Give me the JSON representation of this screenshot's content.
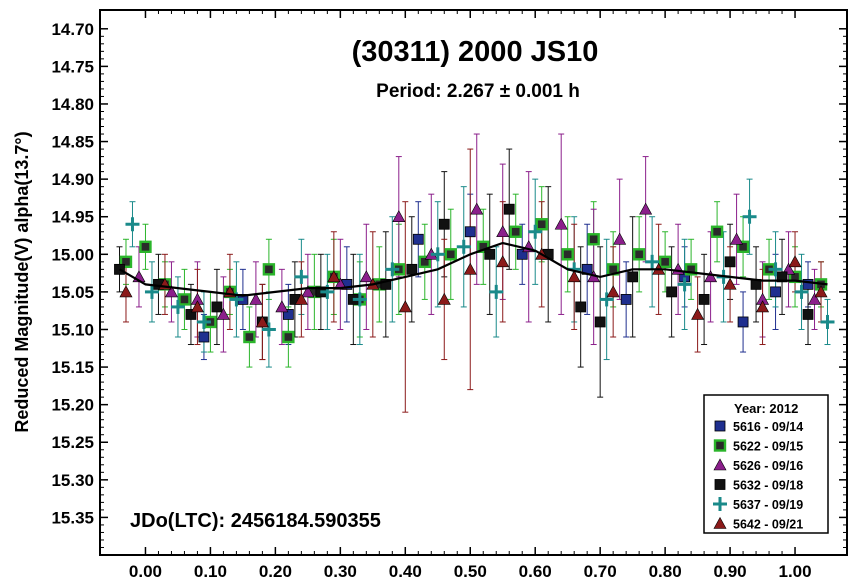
{
  "chart_data": {
    "type": "scatter",
    "title": "(30311) 2000 JS10",
    "subtitle": "Period: 2.267 ± 0.001 h",
    "xlabel": "",
    "ylabel": "Reduced Magnitude(V) alpha(13.7°)",
    "annotation": "JDo(LTC): 2456184.590355",
    "xlim": [
      -0.07,
      1.08
    ],
    "ylim": [
      14.675,
      15.4
    ],
    "y_inverted": true,
    "x_ticks": [
      "0.00",
      "0.10",
      "0.20",
      "0.30",
      "0.40",
      "0.50",
      "0.60",
      "0.70",
      "0.80",
      "0.90",
      "1.00"
    ],
    "y_ticks": [
      "14.70",
      "14.75",
      "14.80",
      "14.85",
      "14.90",
      "14.95",
      "15.00",
      "15.05",
      "15.10",
      "15.15",
      "15.20",
      "15.25",
      "15.30",
      "15.35"
    ],
    "grid": false,
    "legend": {
      "title": "Year: 2012",
      "placement": "bottom-right",
      "entries": [
        {
          "label": "5616 - 09/14",
          "marker": "square",
          "color": "#1f2f8f"
        },
        {
          "label": "5622 - 09/15",
          "marker": "square-outlined",
          "color": "#2a2a2a",
          "edge": "#2bb52b"
        },
        {
          "label": "5626 - 09/16",
          "marker": "triangle",
          "color": "#8b1f8b"
        },
        {
          "label": "5632 - 09/18",
          "marker": "square",
          "color": "#111111"
        },
        {
          "label": "5637 - 09/19",
          "marker": "plus",
          "color": "#1a8a8a"
        },
        {
          "label": "5642 - 09/21",
          "marker": "triangle",
          "color": "#8b1a1a"
        }
      ]
    },
    "fit_curve": {
      "x": [
        -0.04,
        0.0,
        0.05,
        0.1,
        0.15,
        0.2,
        0.25,
        0.3,
        0.35,
        0.4,
        0.45,
        0.5,
        0.55,
        0.6,
        0.65,
        0.7,
        0.75,
        0.8,
        0.85,
        0.9,
        0.95,
        1.0,
        1.05
      ],
      "y": [
        15.02,
        15.04,
        15.045,
        15.05,
        15.055,
        15.05,
        15.045,
        15.045,
        15.04,
        15.03,
        15.02,
        15.0,
        14.985,
        14.995,
        15.02,
        15.03,
        15.02,
        15.02,
        15.025,
        15.03,
        15.035,
        15.035,
        15.04
      ]
    },
    "series": [
      {
        "name": "5616 - 09/14",
        "x": [
          0.09,
          0.15,
          0.22,
          0.31,
          0.42,
          0.5,
          0.58,
          0.68,
          0.74,
          0.83,
          0.92,
          0.97,
          1.02
        ],
        "y": [
          15.11,
          15.06,
          15.08,
          15.04,
          14.98,
          14.97,
          15.0,
          15.02,
          15.06,
          15.03,
          15.09,
          15.05,
          15.04
        ],
        "err": [
          0.03,
          0.04,
          0.04,
          0.05,
          0.05,
          0.05,
          0.04,
          0.06,
          0.05,
          0.04,
          0.04,
          0.05,
          0.03
        ]
      },
      {
        "name": "5622 - 09/15",
        "x": [
          -0.03,
          0.0,
          0.03,
          0.06,
          0.1,
          0.13,
          0.16,
          0.19,
          0.22,
          0.26,
          0.29,
          0.33,
          0.36,
          0.39,
          0.43,
          0.47,
          0.52,
          0.57,
          0.61,
          0.65,
          0.69,
          0.72,
          0.76,
          0.8,
          0.84,
          0.88,
          0.92,
          0.96,
          1.0,
          1.04
        ],
        "y": [
          15.01,
          14.99,
          15.04,
          15.06,
          15.09,
          15.05,
          15.11,
          15.02,
          15.11,
          15.05,
          15.03,
          15.06,
          15.04,
          15.02,
          15.01,
          15.0,
          14.99,
          14.97,
          14.96,
          15.0,
          14.98,
          15.02,
          15.0,
          15.01,
          15.02,
          14.97,
          14.99,
          15.02,
          15.03,
          15.04
        ],
        "err": [
          0.03,
          0.03,
          0.03,
          0.04,
          0.04,
          0.03,
          0.04,
          0.04,
          0.04,
          0.05,
          0.05,
          0.05,
          0.05,
          0.06,
          0.05,
          0.06,
          0.05,
          0.05,
          0.05,
          0.05,
          0.05,
          0.05,
          0.05,
          0.04,
          0.04,
          0.04,
          0.04,
          0.04,
          0.04,
          0.03
        ]
      },
      {
        "name": "5626 - 09/16",
        "x": [
          -0.01,
          0.04,
          0.08,
          0.12,
          0.17,
          0.21,
          0.25,
          0.3,
          0.34,
          0.39,
          0.44,
          0.51,
          0.55,
          0.59,
          0.64,
          0.69,
          0.73,
          0.77,
          0.82,
          0.87,
          0.91,
          0.95,
          0.99,
          1.03
        ],
        "y": [
          15.03,
          15.05,
          15.06,
          15.08,
          15.06,
          15.07,
          15.05,
          15.04,
          15.03,
          14.95,
          15.0,
          14.94,
          14.97,
          14.99,
          14.96,
          15.03,
          14.98,
          14.94,
          15.02,
          15.03,
          14.98,
          15.06,
          15.02,
          15.06
        ],
        "err": [
          0.04,
          0.04,
          0.05,
          0.05,
          0.05,
          0.05,
          0.05,
          0.06,
          0.07,
          0.08,
          0.08,
          0.1,
          0.09,
          0.1,
          0.12,
          0.09,
          0.08,
          0.07,
          0.06,
          0.06,
          0.06,
          0.05,
          0.05,
          0.04
        ]
      },
      {
        "name": "5632 - 09/18",
        "x": [
          -0.04,
          0.02,
          0.07,
          0.11,
          0.18,
          0.23,
          0.27,
          0.32,
          0.37,
          0.41,
          0.46,
          0.53,
          0.56,
          0.62,
          0.67,
          0.7,
          0.75,
          0.81,
          0.86,
          0.9,
          0.94,
          0.98,
          1.02
        ],
        "y": [
          15.02,
          15.04,
          15.08,
          15.07,
          15.09,
          15.06,
          15.05,
          15.06,
          15.04,
          15.02,
          14.96,
          15.0,
          14.94,
          15.0,
          15.07,
          15.09,
          15.03,
          15.05,
          15.06,
          15.01,
          15.04,
          15.03,
          15.08
        ],
        "err": [
          0.03,
          0.04,
          0.04,
          0.05,
          0.05,
          0.05,
          0.05,
          0.06,
          0.07,
          0.07,
          0.07,
          0.08,
          0.08,
          0.09,
          0.08,
          0.1,
          0.08,
          0.06,
          0.06,
          0.05,
          0.05,
          0.05,
          0.04
        ]
      },
      {
        "name": "5637 - 09/19",
        "x": [
          -0.02,
          0.01,
          0.05,
          0.09,
          0.14,
          0.19,
          0.24,
          0.28,
          0.33,
          0.38,
          0.45,
          0.49,
          0.54,
          0.6,
          0.66,
          0.71,
          0.78,
          0.83,
          0.89,
          0.93,
          0.97,
          1.01,
          1.05
        ],
        "y": [
          14.96,
          15.05,
          15.07,
          15.09,
          15.06,
          15.1,
          15.03,
          15.05,
          15.06,
          15.02,
          15.0,
          14.99,
          15.05,
          14.97,
          15.02,
          15.06,
          15.01,
          15.04,
          15.03,
          14.95,
          15.02,
          15.05,
          15.09
        ],
        "err": [
          0.03,
          0.04,
          0.04,
          0.04,
          0.05,
          0.05,
          0.05,
          0.05,
          0.06,
          0.07,
          0.07,
          0.08,
          0.06,
          0.07,
          0.07,
          0.08,
          0.06,
          0.06,
          0.06,
          0.05,
          0.05,
          0.05,
          0.03
        ]
      },
      {
        "name": "5642 - 09/21",
        "x": [
          -0.03,
          0.03,
          0.08,
          0.13,
          0.18,
          0.24,
          0.29,
          0.35,
          0.4,
          0.46,
          0.5,
          0.55,
          0.61,
          0.66,
          0.72,
          0.79,
          0.85,
          0.9,
          0.95,
          1.0,
          1.04
        ],
        "y": [
          15.05,
          15.04,
          15.07,
          15.05,
          15.09,
          15.06,
          15.03,
          15.04,
          15.07,
          15.06,
          15.02,
          15.01,
          15.0,
          15.03,
          15.05,
          15.02,
          15.08,
          15.04,
          15.07,
          15.01,
          15.05
        ],
        "err": [
          0.04,
          0.04,
          0.05,
          0.05,
          0.05,
          0.05,
          0.06,
          0.07,
          0.14,
          0.08,
          0.16,
          0.08,
          0.07,
          0.07,
          0.06,
          0.06,
          0.05,
          0.05,
          0.05,
          0.04,
          0.04
        ]
      }
    ]
  }
}
